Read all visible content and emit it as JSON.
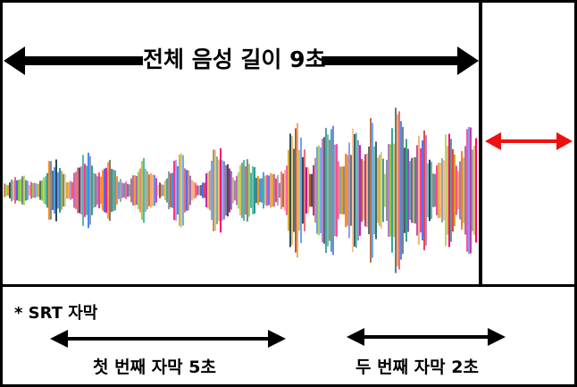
{
  "top": {
    "total_label": "전체 음성 길이 9초"
  },
  "bottom": {
    "srt_label": "* SRT 자막",
    "first_subtitle_label": "첫 번째 자막 5초",
    "second_subtitle_label": "두 번째 자막 2초"
  },
  "colors": {
    "arrow_black": "#000000",
    "gap_arrow_red": "#ee1111",
    "waveform_palette": [
      "#e63946",
      "#2a9d8f",
      "#8e44ad",
      "#f4a261",
      "#264653",
      "#3a86ff",
      "#8ac926",
      "#ff006e",
      "#a0522d",
      "#6c757d",
      "#d4a017",
      "#1b998b",
      "#b5179e",
      "#ff7f11",
      "#4361ee"
    ]
  }
}
